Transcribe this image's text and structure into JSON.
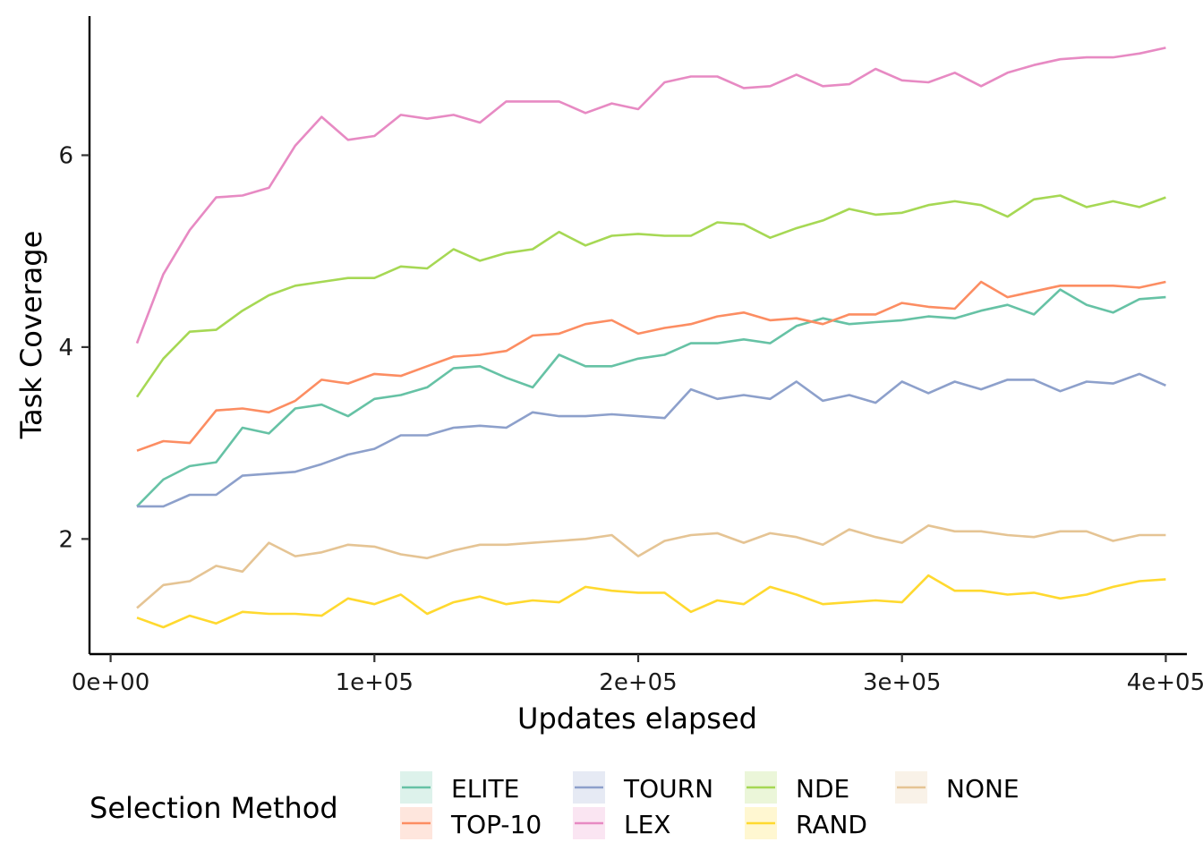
{
  "chart_data": {
    "type": "line",
    "title": "",
    "xlabel": "Updates elapsed",
    "ylabel": "Task Coverage",
    "xlim": [
      -8000,
      408000
    ],
    "ylim": [
      0.8,
      7.45
    ],
    "x_ticks": [
      0,
      100000,
      200000,
      300000,
      400000
    ],
    "x_tick_labels": [
      "0e+00",
      "1e+05",
      "2e+05",
      "3e+05",
      "4e+05"
    ],
    "y_ticks": [
      2,
      4,
      6
    ],
    "y_tick_labels": [
      "2",
      "4",
      "6"
    ],
    "grid": false,
    "legend": {
      "title": "Selection Method",
      "position": "bottom"
    },
    "x": [
      10000,
      20000,
      30000,
      40000,
      50000,
      60000,
      70000,
      80000,
      90000,
      100000,
      110000,
      120000,
      130000,
      140000,
      150000,
      160000,
      170000,
      180000,
      190000,
      200000,
      210000,
      220000,
      230000,
      240000,
      250000,
      260000,
      270000,
      280000,
      290000,
      300000,
      310000,
      320000,
      330000,
      340000,
      350000,
      360000,
      370000,
      380000,
      390000,
      400000
    ],
    "series": [
      {
        "name": "ELITE",
        "color": "#66c2a5",
        "values": [
          2.34,
          2.62,
          2.76,
          2.8,
          3.16,
          3.1,
          3.36,
          3.4,
          3.28,
          3.46,
          3.5,
          3.58,
          3.78,
          3.8,
          3.68,
          3.58,
          3.92,
          3.8,
          3.8,
          3.88,
          3.92,
          4.04,
          4.04,
          4.08,
          4.04,
          4.22,
          4.3,
          4.24,
          4.26,
          4.28,
          4.32,
          4.3,
          4.38,
          4.44,
          4.34,
          4.6,
          4.44,
          4.36,
          4.5,
          4.52
        ]
      },
      {
        "name": "TOP-10",
        "color": "#fc8d62",
        "values": [
          2.92,
          3.02,
          3.0,
          3.34,
          3.36,
          3.32,
          3.44,
          3.66,
          3.62,
          3.72,
          3.7,
          3.8,
          3.9,
          3.92,
          3.96,
          4.12,
          4.14,
          4.24,
          4.28,
          4.14,
          4.2,
          4.24,
          4.32,
          4.36,
          4.28,
          4.3,
          4.24,
          4.34,
          4.34,
          4.46,
          4.42,
          4.4,
          4.68,
          4.52,
          4.58,
          4.64,
          4.64,
          4.64,
          4.62,
          4.68
        ]
      },
      {
        "name": "TOURN",
        "color": "#8da0cb",
        "values": [
          2.34,
          2.34,
          2.46,
          2.46,
          2.66,
          2.68,
          2.7,
          2.78,
          2.88,
          2.94,
          3.08,
          3.08,
          3.16,
          3.18,
          3.16,
          3.32,
          3.28,
          3.28,
          3.3,
          3.28,
          3.26,
          3.56,
          3.46,
          3.5,
          3.46,
          3.64,
          3.44,
          3.5,
          3.42,
          3.64,
          3.52,
          3.64,
          3.56,
          3.66,
          3.66,
          3.54,
          3.64,
          3.62,
          3.72,
          3.6
        ]
      },
      {
        "name": "LEX",
        "color": "#e78ac3",
        "values": [
          4.04,
          4.76,
          5.22,
          5.56,
          5.58,
          5.66,
          6.1,
          6.4,
          6.16,
          6.2,
          6.42,
          6.38,
          6.42,
          6.34,
          6.56,
          6.56,
          6.56,
          6.44,
          6.54,
          6.48,
          6.76,
          6.82,
          6.82,
          6.7,
          6.72,
          6.84,
          6.72,
          6.74,
          6.9,
          6.78,
          6.76,
          6.86,
          6.72,
          6.86,
          6.94,
          7.0,
          7.02,
          7.02,
          7.06,
          7.12
        ]
      },
      {
        "name": "NDE",
        "color": "#a6d854",
        "values": [
          3.48,
          3.88,
          4.16,
          4.18,
          4.38,
          4.54,
          4.64,
          4.68,
          4.72,
          4.72,
          4.84,
          4.82,
          5.02,
          4.9,
          4.98,
          5.02,
          5.2,
          5.06,
          5.16,
          5.18,
          5.16,
          5.16,
          5.3,
          5.28,
          5.14,
          5.24,
          5.32,
          5.44,
          5.38,
          5.4,
          5.48,
          5.52,
          5.48,
          5.36,
          5.54,
          5.58,
          5.46,
          5.52,
          5.46,
          5.56
        ]
      },
      {
        "name": "RAND",
        "color": "#ffd92f",
        "values": [
          1.18,
          1.08,
          1.2,
          1.12,
          1.24,
          1.22,
          1.22,
          1.2,
          1.38,
          1.32,
          1.42,
          1.22,
          1.34,
          1.4,
          1.32,
          1.36,
          1.34,
          1.5,
          1.46,
          1.44,
          1.44,
          1.24,
          1.36,
          1.32,
          1.5,
          1.42,
          1.32,
          1.34,
          1.36,
          1.34,
          1.62,
          1.46,
          1.46,
          1.42,
          1.44,
          1.38,
          1.42,
          1.5,
          1.56,
          1.58
        ]
      },
      {
        "name": "NONE",
        "color": "#e5c494",
        "values": [
          1.28,
          1.52,
          1.56,
          1.72,
          1.66,
          1.96,
          1.82,
          1.86,
          1.94,
          1.92,
          1.84,
          1.8,
          1.88,
          1.94,
          1.94,
          1.96,
          1.98,
          2.0,
          2.04,
          1.82,
          1.98,
          2.04,
          2.06,
          1.96,
          2.06,
          2.02,
          1.94,
          2.1,
          2.02,
          1.96,
          2.14,
          2.08,
          2.08,
          2.04,
          2.02,
          2.08,
          2.08,
          1.98,
          2.04,
          2.04
        ]
      }
    ]
  }
}
